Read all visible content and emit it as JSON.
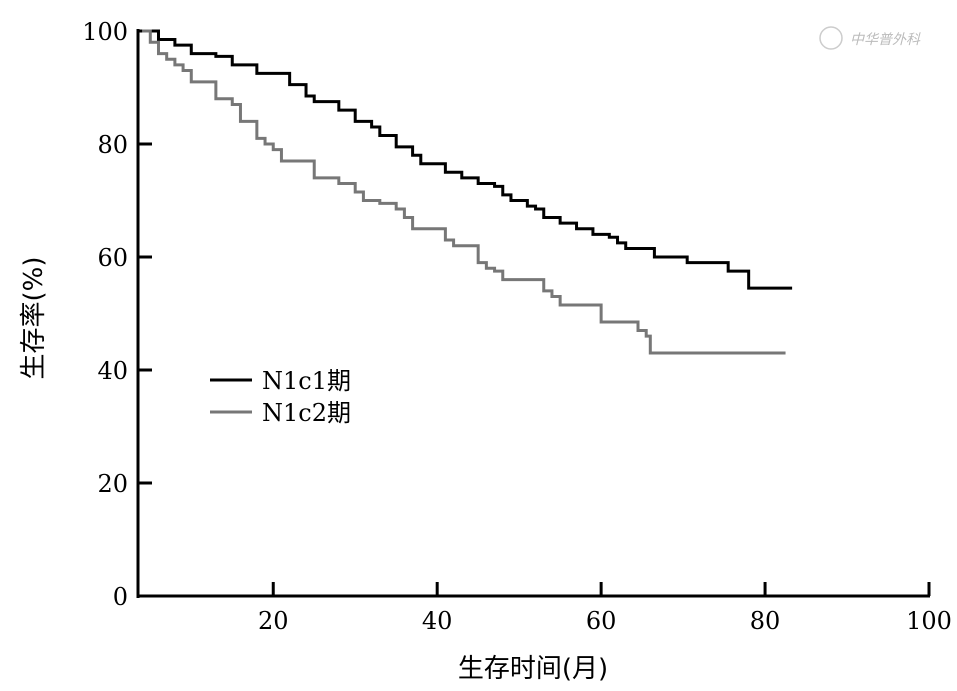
{
  "chart_data": {
    "type": "line",
    "title": "",
    "xlabel": "生存时间(月)",
    "ylabel": "生存率(%)",
    "xlim": [
      3.5,
      100
    ],
    "ylim": [
      0,
      100
    ],
    "xticks": [
      20,
      40,
      60,
      80,
      100
    ],
    "yticks": [
      0,
      20,
      40,
      60,
      80,
      100
    ],
    "grid": false,
    "legend_position": "middle-left",
    "watermark": "中华普外科",
    "series": [
      {
        "name": "N1c1期",
        "color": "#000000",
        "step": true,
        "x": [
          4,
          5,
          6,
          8,
          10,
          13,
          15,
          18,
          22,
          24,
          25,
          28,
          30,
          32,
          33,
          35,
          37,
          38,
          41,
          43,
          45,
          47,
          48,
          49,
          51,
          52,
          53,
          55,
          57,
          59,
          61,
          62,
          63,
          66.5,
          70.5,
          75.5,
          78,
          83.3
        ],
        "y": [
          100,
          100,
          98.5,
          97.5,
          96,
          95.5,
          94,
          92.5,
          90.5,
          88.5,
          87.5,
          86,
          84,
          83,
          81.5,
          79.5,
          78,
          76.5,
          75,
          74,
          73,
          72.5,
          71,
          70,
          69,
          68.5,
          67,
          66,
          65,
          64,
          63.5,
          62.5,
          61.5,
          60,
          59,
          57.5,
          54.5,
          54.5
        ]
      },
      {
        "name": "N1c2期",
        "color": "#777777",
        "step": true,
        "x": [
          4,
          5,
          6,
          7,
          8,
          9,
          10,
          13,
          15,
          16,
          18,
          19,
          20,
          21,
          25,
          28,
          30,
          31,
          33,
          35,
          36,
          37,
          41,
          42,
          45,
          46,
          47,
          48,
          53,
          54,
          55,
          60,
          64.5,
          65.5,
          66,
          82.5
        ],
        "y": [
          100,
          98,
          96,
          95,
          94,
          93,
          91,
          88,
          87,
          84,
          81,
          80,
          79,
          77,
          74,
          73,
          71.5,
          70,
          69.5,
          68.5,
          67,
          65,
          63,
          62,
          59,
          58,
          57.5,
          56,
          54,
          53,
          51.5,
          48.5,
          47,
          46,
          43,
          43
        ]
      }
    ]
  }
}
